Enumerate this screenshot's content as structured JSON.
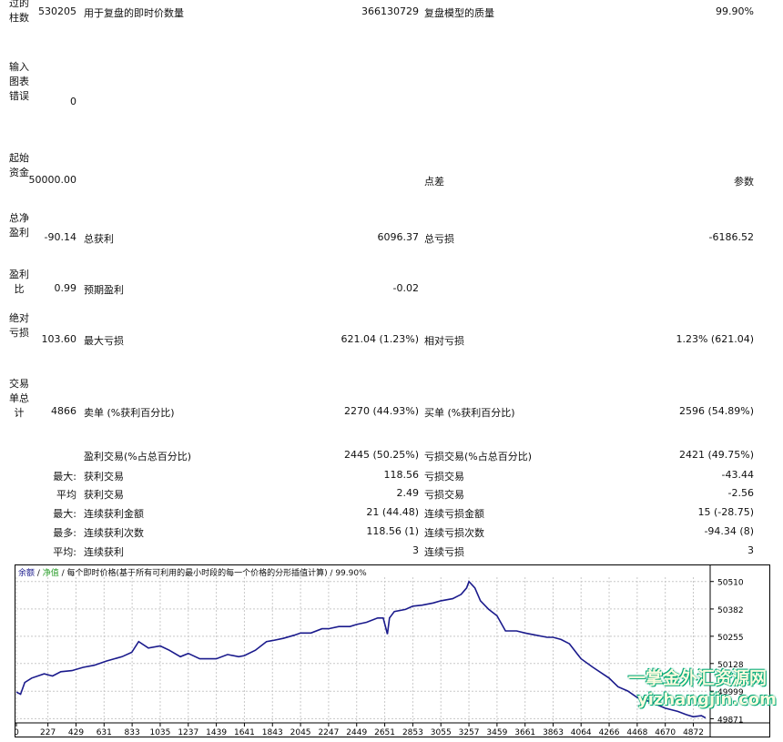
{
  "labels": {
    "bars": "过的柱数",
    "errors": "输入图表错误",
    "deposit": "起始资金",
    "net": "总净盈利",
    "pf": "盈利比",
    "abs_dd": "绝对亏损",
    "trades": "交易单总计",
    "max1": "最大:",
    "avg1": "平均",
    "max2": "最大:",
    "most": "最多:",
    "avg2": "平均:"
  },
  "rows": {
    "bars_value": "530205",
    "ticks_label": "用于复盘的即时价数量",
    "ticks_value": "366130729",
    "quality_label": "复盘模型的质量",
    "quality_value": "99.90%",
    "errors_value": "0",
    "deposit_value": "50000.00",
    "spread_label": "点差",
    "params_label": "参数",
    "net_value": "-90.14",
    "gross_profit_label": "总获利",
    "gross_profit_value": "6096.37",
    "gross_loss_label": "总亏损",
    "gross_loss_value": "-6186.52",
    "pf_value": "0.99",
    "expected_label": "预期盈利",
    "expected_value": "-0.02",
    "abs_dd_value": "103.60",
    "max_dd_label": "最大亏损",
    "max_dd_value": "621.04 (1.23%)",
    "rel_dd_label": "相对亏损",
    "rel_dd_value": "1.23% (621.04)",
    "trades_value": "4866",
    "short_label": "卖单 (%获利百分比)",
    "short_value": "2270 (44.93%)",
    "long_label": "买单 (%获利百分比)",
    "long_value": "2596 (54.89%)",
    "profit_trades_label": "盈利交易(%占总百分比)",
    "profit_trades_value": "2445 (50.25%)",
    "loss_trades_label": "亏损交易(%占总百分比)",
    "loss_trades_value": "2421 (49.75%)",
    "max_profit_label": "获利交易",
    "max_profit_value": "118.56",
    "max_loss_label": "亏损交易",
    "max_loss_value": "-43.44",
    "avg_profit_label": "获利交易",
    "avg_profit_value": "2.49",
    "avg_loss_label": "亏损交易",
    "avg_loss_value": "-2.56",
    "max_cons_wins_label": "连续获利金额",
    "max_cons_wins_value": "21 (44.48)",
    "max_cons_losses_label": "连续亏损金额",
    "max_cons_losses_value": "15 (-28.75)",
    "max_cons_profit_label": "连续获利次数",
    "max_cons_profit_value": "118.56 (1)",
    "max_cons_loss_label": "连续亏损次数",
    "max_cons_loss_value": "-94.34 (8)",
    "avg_cons_wins_label": "连续获利",
    "avg_cons_wins_value": "3",
    "avg_cons_losses_label": "连续亏损",
    "avg_cons_losses_value": "3"
  },
  "chart_header": {
    "balance": "余额",
    "sep1": " / ",
    "equity": "净值",
    "rest": " / 每个即时价格(基于所有可利用的最小时段的每一个价格的分形插值计算) / 99.90%"
  },
  "watermark": {
    "line1": "一掌金外汇资源网",
    "line2": "yizhangjin.com"
  },
  "colors": {
    "balance_line": "#1a1a8c",
    "equity_label": "#2a9d2a",
    "balance_label": "#1a1a8c",
    "grid": "#c8c8c8"
  },
  "chart_data": {
    "type": "line",
    "x_ticks": [
      "0",
      "227",
      "429",
      "631",
      "833",
      "1035",
      "1237",
      "1439",
      "1641",
      "1843",
      "2045",
      "2247",
      "2449",
      "2651",
      "2853",
      "3055",
      "3257",
      "3459",
      "3661",
      "3863",
      "4064",
      "4266",
      "4468",
      "4670",
      "4872"
    ],
    "y_ticks": [
      "50510",
      "50382",
      "50255",
      "50128",
      "49999",
      "49871"
    ],
    "xlim": [
      0,
      4980
    ],
    "ylim": [
      49860,
      50530
    ],
    "series": [
      {
        "values": [
          [
            0,
            49995
          ],
          [
            30,
            49985
          ],
          [
            60,
            50040
          ],
          [
            110,
            50060
          ],
          [
            200,
            50080
          ],
          [
            260,
            50070
          ],
          [
            320,
            50090
          ],
          [
            400,
            50095
          ],
          [
            480,
            50110
          ],
          [
            560,
            50120
          ],
          [
            650,
            50140
          ],
          [
            760,
            50160
          ],
          [
            830,
            50180
          ],
          [
            880,
            50230
          ],
          [
            950,
            50200
          ],
          [
            1035,
            50210
          ],
          [
            1100,
            50190
          ],
          [
            1180,
            50160
          ],
          [
            1237,
            50175
          ],
          [
            1320,
            50150
          ],
          [
            1439,
            50150
          ],
          [
            1520,
            50170
          ],
          [
            1600,
            50160
          ],
          [
            1641,
            50165
          ],
          [
            1720,
            50190
          ],
          [
            1800,
            50230
          ],
          [
            1843,
            50235
          ],
          [
            1920,
            50245
          ],
          [
            2000,
            50260
          ],
          [
            2045,
            50270
          ],
          [
            2120,
            50270
          ],
          [
            2200,
            50290
          ],
          [
            2247,
            50290
          ],
          [
            2320,
            50300
          ],
          [
            2400,
            50300
          ],
          [
            2449,
            50310
          ],
          [
            2520,
            50320
          ],
          [
            2600,
            50340
          ],
          [
            2640,
            50340
          ],
          [
            2670,
            50265
          ],
          [
            2685,
            50340
          ],
          [
            2720,
            50370
          ],
          [
            2800,
            50380
          ],
          [
            2853,
            50395
          ],
          [
            2920,
            50400
          ],
          [
            3000,
            50410
          ],
          [
            3055,
            50420
          ],
          [
            3140,
            50430
          ],
          [
            3200,
            50450
          ],
          [
            3240,
            50480
          ],
          [
            3257,
            50510
          ],
          [
            3300,
            50480
          ],
          [
            3340,
            50420
          ],
          [
            3400,
            50380
          ],
          [
            3459,
            50350
          ],
          [
            3520,
            50280
          ],
          [
            3600,
            50280
          ],
          [
            3661,
            50270
          ],
          [
            3740,
            50260
          ],
          [
            3820,
            50250
          ],
          [
            3863,
            50250
          ],
          [
            3920,
            50240
          ],
          [
            3980,
            50220
          ],
          [
            4064,
            50150
          ],
          [
            4150,
            50110
          ],
          [
            4266,
            50060
          ],
          [
            4330,
            50020
          ],
          [
            4400,
            50000
          ],
          [
            4468,
            49970
          ],
          [
            4560,
            49950
          ],
          [
            4670,
            49920
          ],
          [
            4760,
            49905
          ],
          [
            4820,
            49890
          ],
          [
            4872,
            49880
          ],
          [
            4930,
            49885
          ],
          [
            4960,
            49875
          ]
        ]
      }
    ]
  }
}
